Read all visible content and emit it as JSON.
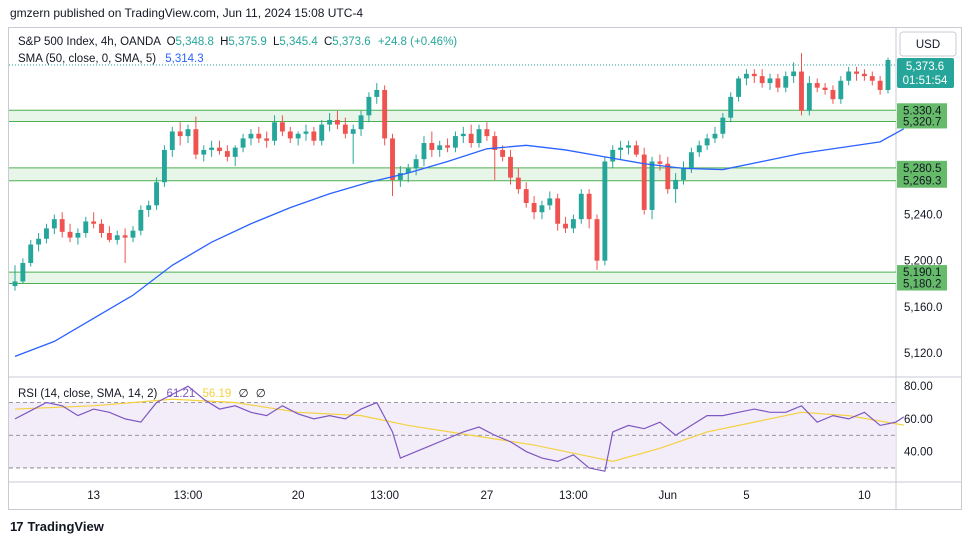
{
  "header": {
    "publisher_line": "gmzern published on TradingView.com, Jun 11, 2024 15:08 UTC-4"
  },
  "legend": {
    "symbol": "S&P 500 Index, 4h, OANDA",
    "o_label": "O",
    "o": "5,348.8",
    "h_label": "H",
    "h": "5,375.9",
    "l_label": "L",
    "l": "5,345.4",
    "c_label": "C",
    "c": "5,373.6",
    "change": "+24.8 (+0.46%)",
    "sma_label": "SMA (50, close, 0, SMA, 5)",
    "sma_value": "5,314.3"
  },
  "rsi_legend": {
    "label": "RSI (14, close, SMA, 14, 2)",
    "rsi": "61.21",
    "rsi_ma": "56.19",
    "v3": "∅",
    "v4": "∅"
  },
  "currency": "USD",
  "price_box": {
    "value": "5,373.6",
    "countdown": "01:51:54"
  },
  "footer": {
    "brand": "TradingView",
    "logo_text": "17"
  },
  "colors": {
    "up": "#26a69a",
    "down": "#ef5350",
    "sma": "#2962ff",
    "rsi": "#7e57c2",
    "rsi_ma": "#f5d142",
    "zone_fill": "#e8f5e9",
    "zone_line": "#4caf50",
    "zone_label": "#66bb6a"
  },
  "chart_data": [
    {
      "type": "candlestick",
      "title": "S&P 500 Index, 4h, OANDA",
      "x_tick_labels": [
        "13",
        "13:00",
        "20",
        "13:00",
        "27",
        "13:00",
        "Jun",
        "5",
        "10"
      ],
      "x_tick_index": [
        10,
        22,
        36,
        47,
        60,
        71,
        83,
        93,
        108
      ],
      "y_tick_labels": [
        "5,240.0",
        "5,200.0",
        "5,160.0",
        "5,120.0"
      ],
      "y_tick_values": [
        5240,
        5200,
        5160,
        5120
      ],
      "ylim": [
        5100,
        5400
      ],
      "zone_labels": [
        "5,330.4",
        "5,320.7",
        "5,280.5",
        "5,269.3",
        "5,190.1",
        "5,180.2"
      ],
      "zones": [
        [
          5320.7,
          5330.4
        ],
        [
          5269.3,
          5280.5
        ],
        [
          5180.2,
          5190.1
        ]
      ],
      "last_close_label": "5,373.6",
      "candles": [
        [
          5178,
          5196,
          5174,
          5182
        ],
        [
          5182,
          5202,
          5180,
          5198
        ],
        [
          5198,
          5218,
          5195,
          5214
        ],
        [
          5214,
          5224,
          5208,
          5219
        ],
        [
          5219,
          5232,
          5215,
          5228
        ],
        [
          5228,
          5240,
          5223,
          5236
        ],
        [
          5236,
          5242,
          5220,
          5225
        ],
        [
          5225,
          5232,
          5216,
          5220
        ],
        [
          5220,
          5228,
          5214,
          5224
        ],
        [
          5224,
          5238,
          5220,
          5234
        ],
        [
          5234,
          5242,
          5228,
          5232
        ],
        [
          5232,
          5236,
          5220,
          5224
        ],
        [
          5224,
          5230,
          5216,
          5218
        ],
        [
          5218,
          5226,
          5214,
          5222
        ],
        [
          5222,
          5228,
          5198,
          5220
        ],
        [
          5220,
          5230,
          5216,
          5226
        ],
        [
          5226,
          5248,
          5222,
          5244
        ],
        [
          5244,
          5252,
          5238,
          5248
        ],
        [
          5248,
          5272,
          5244,
          5268
        ],
        [
          5268,
          5300,
          5264,
          5296
        ],
        [
          5296,
          5316,
          5290,
          5312
        ],
        [
          5312,
          5320,
          5300,
          5308
        ],
        [
          5308,
          5318,
          5302,
          5314
        ],
        [
          5314,
          5325,
          5288,
          5292
        ],
        [
          5292,
          5300,
          5286,
          5296
        ],
        [
          5296,
          5304,
          5290,
          5298
        ],
        [
          5298,
          5304,
          5292,
          5295
        ],
        [
          5295,
          5300,
          5286,
          5290
        ],
        [
          5290,
          5300,
          5282,
          5298
        ],
        [
          5298,
          5310,
          5294,
          5306
        ],
        [
          5306,
          5314,
          5300,
          5310
        ],
        [
          5310,
          5316,
          5302,
          5306
        ],
        [
          5306,
          5312,
          5298,
          5304
        ],
        [
          5304,
          5326,
          5300,
          5320
        ],
        [
          5320,
          5326,
          5308,
          5312
        ],
        [
          5312,
          5316,
          5302,
          5306
        ],
        [
          5306,
          5312,
          5300,
          5310
        ],
        [
          5310,
          5318,
          5304,
          5312
        ],
        [
          5312,
          5316,
          5300,
          5304
        ],
        [
          5304,
          5322,
          5300,
          5318
        ],
        [
          5318,
          5328,
          5312,
          5322
        ],
        [
          5322,
          5330,
          5314,
          5318
        ],
        [
          5318,
          5324,
          5306,
          5310
        ],
        [
          5310,
          5318,
          5284,
          5314
        ],
        [
          5314,
          5330,
          5308,
          5326
        ],
        [
          5326,
          5346,
          5320,
          5342
        ],
        [
          5342,
          5354,
          5336,
          5348
        ],
        [
          5348,
          5352,
          5300,
          5306
        ],
        [
          5306,
          5310,
          5256,
          5270
        ],
        [
          5270,
          5282,
          5264,
          5276
        ],
        [
          5276,
          5284,
          5268,
          5280
        ],
        [
          5280,
          5292,
          5274,
          5288
        ],
        [
          5288,
          5308,
          5282,
          5302
        ],
        [
          5302,
          5312,
          5290,
          5296
        ],
        [
          5296,
          5304,
          5290,
          5300
        ],
        [
          5300,
          5306,
          5294,
          5298
        ],
        [
          5298,
          5312,
          5294,
          5308
        ],
        [
          5308,
          5316,
          5302,
          5310
        ],
        [
          5310,
          5318,
          5298,
          5302
        ],
        [
          5302,
          5318,
          5298,
          5314
        ],
        [
          5314,
          5320,
          5304,
          5308
        ],
        [
          5308,
          5312,
          5270,
          5296
        ],
        [
          5296,
          5300,
          5286,
          5290
        ],
        [
          5290,
          5296,
          5266,
          5272
        ],
        [
          5272,
          5280,
          5258,
          5262
        ],
        [
          5262,
          5268,
          5246,
          5250
        ],
        [
          5250,
          5256,
          5236,
          5242
        ],
        [
          5242,
          5252,
          5236,
          5248
        ],
        [
          5248,
          5260,
          5244,
          5254
        ],
        [
          5254,
          5258,
          5226,
          5232
        ],
        [
          5232,
          5238,
          5224,
          5228
        ],
        [
          5228,
          5240,
          5224,
          5236
        ],
        [
          5236,
          5262,
          5232,
          5258
        ],
        [
          5258,
          5262,
          5228,
          5236
        ],
        [
          5236,
          5240,
          5192,
          5200
        ],
        [
          5200,
          5290,
          5196,
          5286
        ],
        [
          5286,
          5300,
          5280,
          5296
        ],
        [
          5296,
          5304,
          5288,
          5298
        ],
        [
          5298,
          5304,
          5292,
          5300
        ],
        [
          5300,
          5304,
          5290,
          5292
        ],
        [
          5292,
          5298,
          5240,
          5244
        ],
        [
          5244,
          5290,
          5236,
          5286
        ],
        [
          5286,
          5292,
          5278,
          5284
        ],
        [
          5284,
          5290,
          5258,
          5262
        ],
        [
          5262,
          5276,
          5250,
          5270
        ],
        [
          5270,
          5286,
          5266,
          5280
        ],
        [
          5280,
          5298,
          5276,
          5294
        ],
        [
          5294,
          5304,
          5290,
          5300
        ],
        [
          5300,
          5310,
          5296,
          5306
        ],
        [
          5306,
          5316,
          5302,
          5310
        ],
        [
          5310,
          5328,
          5306,
          5324
        ],
        [
          5324,
          5346,
          5320,
          5342
        ],
        [
          5342,
          5360,
          5338,
          5358
        ],
        [
          5358,
          5366,
          5352,
          5362
        ],
        [
          5362,
          5366,
          5354,
          5360
        ],
        [
          5360,
          5366,
          5350,
          5354
        ],
        [
          5354,
          5362,
          5348,
          5358
        ],
        [
          5358,
          5362,
          5346,
          5350
        ],
        [
          5350,
          5364,
          5346,
          5360
        ],
        [
          5360,
          5372,
          5354,
          5364
        ],
        [
          5364,
          5380,
          5326,
          5330
        ],
        [
          5330,
          5360,
          5326,
          5354
        ],
        [
          5354,
          5358,
          5346,
          5350
        ],
        [
          5350,
          5354,
          5344,
          5348
        ],
        [
          5348,
          5352,
          5336,
          5340
        ],
        [
          5340,
          5360,
          5336,
          5356
        ],
        [
          5356,
          5368,
          5352,
          5364
        ],
        [
          5364,
          5368,
          5356,
          5362
        ],
        [
          5362,
          5366,
          5356,
          5360
        ],
        [
          5360,
          5364,
          5352,
          5356
        ],
        [
          5356,
          5360,
          5344,
          5348
        ],
        [
          5348,
          5376,
          5345,
          5374
        ]
      ],
      "sma": [
        [
          0,
          5117
        ],
        [
          5,
          5130
        ],
        [
          10,
          5150
        ],
        [
          15,
          5170
        ],
        [
          20,
          5196
        ],
        [
          25,
          5216
        ],
        [
          30,
          5232
        ],
        [
          35,
          5246
        ],
        [
          40,
          5258
        ],
        [
          45,
          5268
        ],
        [
          50,
          5276
        ],
        [
          55,
          5286
        ],
        [
          60,
          5297
        ],
        [
          65,
          5300
        ],
        [
          70,
          5296
        ],
        [
          75,
          5290
        ],
        [
          80,
          5284
        ],
        [
          85,
          5280
        ],
        [
          90,
          5279
        ],
        [
          95,
          5286
        ],
        [
          100,
          5293
        ],
        [
          105,
          5298
        ],
        [
          110,
          5303
        ],
        [
          113,
          5314.3
        ]
      ]
    },
    {
      "type": "line",
      "title": "RSI (14, close, SMA, 14, 2)",
      "y_tick_labels": [
        "80.00",
        "60.00",
        "40.00"
      ],
      "y_tick_values": [
        80,
        60,
        40
      ],
      "bands": [
        70,
        50,
        30
      ],
      "ylim": [
        22,
        85
      ],
      "rsi": [
        [
          0,
          60
        ],
        [
          2,
          65
        ],
        [
          4,
          70
        ],
        [
          6,
          68
        ],
        [
          8,
          62
        ],
        [
          10,
          66
        ],
        [
          12,
          64
        ],
        [
          14,
          60
        ],
        [
          16,
          58
        ],
        [
          18,
          70
        ],
        [
          20,
          75
        ],
        [
          22,
          80
        ],
        [
          24,
          72
        ],
        [
          26,
          66
        ],
        [
          28,
          68
        ],
        [
          30,
          64
        ],
        [
          32,
          62
        ],
        [
          34,
          68
        ],
        [
          36,
          63
        ],
        [
          38,
          60
        ],
        [
          40,
          62
        ],
        [
          42,
          60
        ],
        [
          44,
          66
        ],
        [
          46,
          70
        ],
        [
          48,
          52
        ],
        [
          49,
          36
        ],
        [
          51,
          40
        ],
        [
          53,
          44
        ],
        [
          55,
          48
        ],
        [
          57,
          52
        ],
        [
          59,
          55
        ],
        [
          61,
          50
        ],
        [
          63,
          46
        ],
        [
          65,
          40
        ],
        [
          67,
          36
        ],
        [
          69,
          34
        ],
        [
          71,
          38
        ],
        [
          73,
          30
        ],
        [
          75,
          28
        ],
        [
          76,
          52
        ],
        [
          78,
          56
        ],
        [
          80,
          54
        ],
        [
          82,
          58
        ],
        [
          84,
          50
        ],
        [
          86,
          56
        ],
        [
          88,
          62
        ],
        [
          90,
          62
        ],
        [
          92,
          64
        ],
        [
          94,
          66
        ],
        [
          96,
          64
        ],
        [
          98,
          64
        ],
        [
          100,
          68
        ],
        [
          102,
          58
        ],
        [
          104,
          62
        ],
        [
          106,
          60
        ],
        [
          108,
          64
        ],
        [
          110,
          56
        ],
        [
          112,
          58
        ],
        [
          113,
          61.21
        ]
      ],
      "rsi_ma": [
        [
          0,
          66
        ],
        [
          10,
          68
        ],
        [
          20,
          72
        ],
        [
          28,
          70
        ],
        [
          36,
          64
        ],
        [
          44,
          62
        ],
        [
          50,
          56
        ],
        [
          58,
          50
        ],
        [
          66,
          44
        ],
        [
          72,
          38
        ],
        [
          76,
          34
        ],
        [
          82,
          42
        ],
        [
          88,
          52
        ],
        [
          94,
          58
        ],
        [
          100,
          64
        ],
        [
          106,
          62
        ],
        [
          113,
          56.19
        ]
      ]
    }
  ]
}
